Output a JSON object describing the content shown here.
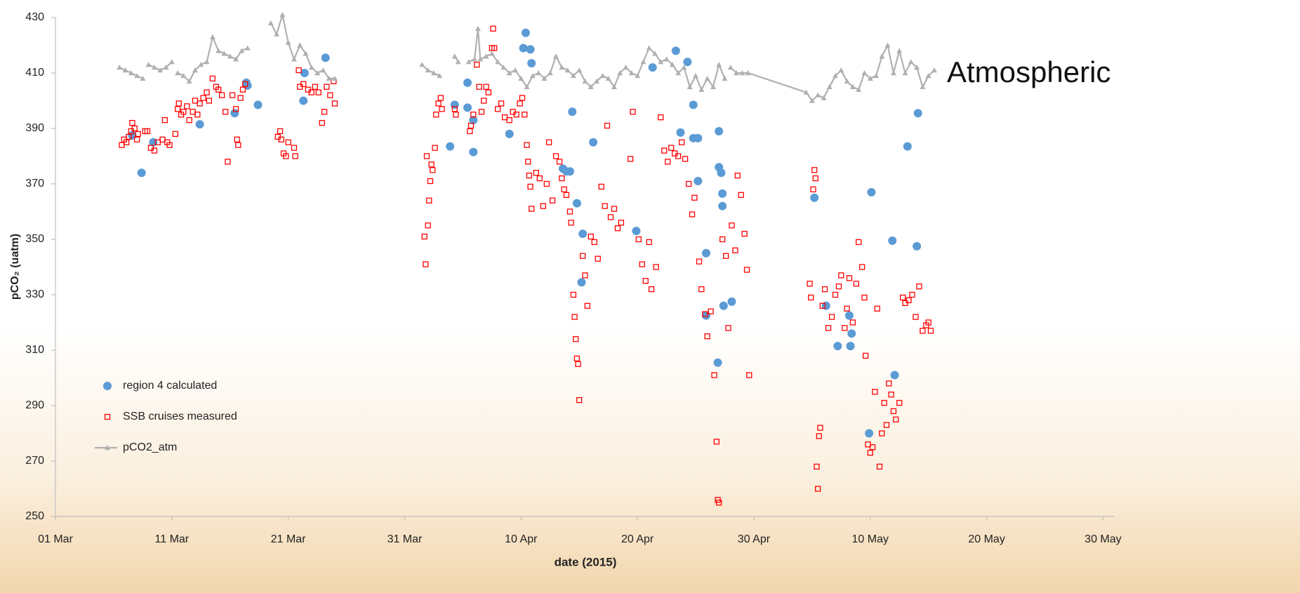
{
  "chart_data": {
    "type": "scatter",
    "annotation": "Atmospheric",
    "x_label": "date (2015)",
    "y_label": "pCO₂ (uatm)",
    "legend": "lower left",
    "xlim": [
      60,
      151
    ],
    "ylim": [
      250,
      430
    ],
    "xticks": [
      {
        "value": 60,
        "label": "01 Mar"
      },
      {
        "value": 70,
        "label": "11 Mar"
      },
      {
        "value": 80,
        "label": "21 Mar"
      },
      {
        "value": 90,
        "label": "31 Mar"
      },
      {
        "value": 100,
        "label": "10 Apr"
      },
      {
        "value": 110,
        "label": "20 Apr"
      },
      {
        "value": 120,
        "label": "30 Apr"
      },
      {
        "value": 130,
        "label": "10 May"
      },
      {
        "value": 140,
        "label": "20 May"
      },
      {
        "value": 150,
        "label": "30 May"
      }
    ],
    "yticks": [
      250,
      270,
      290,
      310,
      330,
      350,
      370,
      390,
      410,
      430
    ],
    "series": [
      {
        "name": "region 4 calculated",
        "color": "#5b9bd5",
        "marker": "circle",
        "x": [
          66.6,
          67.4,
          68.4,
          72.4,
          75.4,
          76.4,
          76.5,
          77.4,
          81.3,
          81.4,
          83.2,
          93.9,
          94.3,
          95.4,
          95.4,
          95.9,
          95.9,
          99,
          100.4,
          100.2,
          100.8,
          100.9,
          103.6,
          103.9,
          104.2,
          104.4,
          104.8,
          105.2,
          105.3,
          106.2,
          109.9,
          111.3,
          113.3,
          113.7,
          114.3,
          114.8,
          114.8,
          115.2,
          115.2,
          115.9,
          115.9,
          116.9,
          117,
          117,
          117.2,
          117.3,
          117.3,
          117.4,
          118.1,
          125.2,
          126.2,
          127.2,
          128.2,
          128.3,
          128.4,
          129.9,
          130.1,
          131.9,
          132.1,
          133.2,
          134,
          134.1
        ],
        "values": [
          387.5,
          374,
          385,
          391.5,
          395.5,
          406.5,
          405.5,
          398.5,
          400,
          410,
          415.5,
          383.5,
          398.5,
          397.5,
          406.5,
          393,
          381.5,
          388,
          424.5,
          419,
          418.5,
          413.5,
          375.5,
          374.5,
          374.5,
          396,
          363,
          334.5,
          352,
          385,
          353,
          412,
          418,
          388.5,
          414,
          398.5,
          386.5,
          386.5,
          371,
          345,
          322.5,
          305.5,
          389,
          376,
          374,
          366.5,
          362,
          326,
          327.5,
          365,
          326,
          311.5,
          322.5,
          311.5,
          316,
          280,
          367,
          349.5,
          301,
          383.5,
          347.5,
          395.5
        ]
      },
      {
        "name": "SSB cruises measured",
        "color": "#ff0000",
        "marker": "square",
        "x": [
          65.7,
          65.9,
          66.1,
          66.3,
          66.5,
          66.6,
          66.8,
          67.0,
          67.1,
          67.7,
          67.9,
          68.2,
          68.5,
          68.8,
          69.2,
          69.4,
          69.6,
          69.8,
          70.3,
          70.5,
          70.6,
          70.8,
          71.0,
          71.3,
          71.5,
          71.8,
          72.0,
          72.2,
          72.4,
          72.7,
          73.0,
          73.2,
          73.5,
          73.8,
          74.0,
          74.3,
          74.6,
          74.8,
          75.2,
          75.5,
          75.6,
          75.7,
          75.9,
          76.1,
          76.3,
          79.1,
          79.3,
          79.4,
          79.6,
          79.8,
          80.0,
          80.5,
          80.6,
          80.9,
          81.0,
          81.3,
          81.7,
          82.0,
          82.3,
          82.6,
          82.9,
          83.1,
          83.3,
          83.6,
          83.9,
          84.0,
          91.7,
          91.8,
          91.9,
          92.0,
          92.1,
          92.2,
          92.3,
          92.4,
          92.6,
          92.7,
          92.9,
          93.1,
          93.2,
          94.3,
          94.4,
          95.6,
          95.7,
          95.9,
          96.2,
          96.4,
          96.6,
          96.8,
          97.0,
          97.2,
          97.5,
          97.6,
          97.7,
          98.0,
          98.3,
          98.6,
          99.0,
          99.3,
          99.6,
          99.9,
          100.1,
          100.3,
          100.5,
          100.6,
          100.7,
          100.8,
          100.9,
          101.3,
          101.6,
          101.9,
          102.2,
          102.4,
          102.7,
          103.0,
          103.3,
          103.5,
          103.7,
          103.9,
          104.2,
          104.3,
          104.5,
          104.6,
          104.7,
          104.8,
          104.9,
          105.0,
          105.3,
          105.5,
          105.7,
          106.0,
          106.3,
          106.6,
          106.9,
          107.2,
          107.4,
          107.7,
          108.0,
          108.3,
          108.6,
          109.4,
          109.6,
          110.1,
          110.4,
          110.7,
          111.0,
          111.2,
          111.6,
          112.0,
          112.3,
          112.6,
          112.9,
          113.2,
          113.5,
          113.8,
          114.1,
          114.4,
          114.7,
          114.9,
          115.3,
          115.5,
          115.8,
          116.0,
          116.3,
          116.6,
          116.8,
          116.9,
          117.0,
          117.3,
          117.6,
          117.8,
          118.1,
          118.4,
          118.6,
          118.9,
          119.2,
          119.4,
          119.6,
          124.8,
          124.9,
          125.1,
          125.2,
          125.3,
          125.4,
          125.5,
          125.6,
          125.7,
          125.9,
          126.1,
          126.4,
          126.7,
          127.0,
          127.3,
          127.5,
          127.8,
          128.0,
          128.2,
          128.5,
          128.8,
          129.0,
          129.3,
          129.5,
          129.6,
          129.8,
          130.0,
          130.2,
          130.4,
          130.6,
          130.8,
          131.0,
          131.2,
          131.4,
          131.6,
          131.8,
          132.0,
          132.2,
          132.5,
          132.8,
          133.0,
          133.3,
          133.6,
          133.9,
          134.2,
          134.5,
          134.8,
          135.0,
          135.2
        ],
        "values": [
          384,
          386,
          385,
          387,
          389,
          392,
          390,
          386,
          388,
          389,
          389,
          383,
          382,
          385,
          386,
          393,
          385,
          384,
          388,
          397,
          399,
          395,
          396,
          398,
          393,
          396,
          400,
          395,
          399,
          401,
          403,
          400,
          408,
          405,
          404,
          402,
          396,
          378,
          402,
          397,
          386,
          384,
          401,
          404,
          406,
          387,
          389,
          386,
          381,
          380,
          385,
          383,
          380,
          411,
          405,
          406,
          404,
          403,
          405,
          403,
          392,
          396,
          405,
          402,
          407,
          399,
          351,
          341,
          380,
          355,
          364,
          371,
          377,
          375,
          383,
          395,
          399,
          401,
          397,
          397,
          395,
          389,
          391,
          395,
          413,
          405,
          396,
          400,
          405,
          403,
          419,
          426,
          419,
          397,
          399,
          394,
          393,
          396,
          395,
          399,
          401,
          395,
          384,
          378,
          373,
          369,
          361,
          374,
          372,
          362,
          370,
          385,
          364,
          380,
          378,
          372,
          368,
          366,
          360,
          356,
          330,
          322,
          314,
          307,
          305,
          292,
          344,
          337,
          326,
          351,
          349,
          343,
          369,
          362,
          391,
          358,
          361,
          354,
          356,
          379,
          396,
          350,
          341,
          335,
          349,
          332,
          340,
          394,
          382,
          378,
          383,
          381,
          380,
          385,
          379,
          370,
          359,
          365,
          342,
          332,
          323,
          315,
          324,
          301,
          277,
          256,
          255,
          350,
          344,
          318,
          355,
          346,
          373,
          366,
          352,
          339,
          301,
          334,
          329,
          368,
          375,
          372,
          268,
          260,
          279,
          282,
          326,
          332,
          318,
          322,
          330,
          333,
          337,
          318,
          325,
          336,
          320,
          334,
          349,
          340,
          329,
          308,
          276,
          273,
          275,
          295,
          325,
          268,
          280,
          291,
          283,
          298,
          294,
          288,
          285,
          291,
          329,
          327,
          328,
          330,
          322,
          333,
          317,
          319,
          320,
          317
        ]
      },
      {
        "name": "pCO2_atm",
        "color": "#b0b0b0",
        "marker": "line-triangle",
        "x": [
          65.5,
          66,
          66.5,
          67,
          67.5,
          null,
          68,
          68.5,
          69,
          69.5,
          70,
          null,
          70.5,
          71,
          71.5,
          72,
          72.5,
          73,
          73.5,
          74,
          74.5,
          75,
          75.5,
          76,
          76.5,
          null,
          78.5,
          79,
          79.5,
          80,
          80.5,
          81,
          81.5,
          82,
          82.5,
          83,
          83.5,
          84,
          null,
          91.5,
          92,
          92.5,
          93,
          null,
          94.3,
          94.6,
          null,
          95.5,
          96,
          96.3,
          96.5,
          97,
          97.5,
          98,
          98.5,
          99,
          99.5,
          100,
          100.5,
          101,
          101.5,
          102,
          102.5,
          103,
          103.5,
          104,
          104.5,
          105,
          105.5,
          106,
          106.5,
          107,
          107.5,
          108,
          108.5,
          109,
          109.5,
          110,
          110.5,
          111,
          111.5,
          112,
          112.5,
          113,
          113.5,
          114,
          114.5,
          115,
          115.5,
          116,
          116.5,
          117,
          117.5,
          null,
          118,
          118.5,
          119,
          119.5,
          124.5,
          125,
          125.5,
          126,
          126.5,
          127,
          127.5,
          128,
          128.5,
          129,
          129.5,
          130,
          130.5,
          131,
          131.5,
          132,
          132.5,
          133,
          133.5,
          134,
          134.5,
          135,
          135.5
        ],
        "values": [
          412,
          411,
          410,
          409,
          408,
          null,
          413,
          412,
          411,
          412,
          414,
          null,
          410,
          409,
          407,
          411,
          413,
          414,
          423,
          418,
          417,
          416,
          415,
          418,
          419,
          null,
          428,
          424,
          431,
          421,
          415,
          420,
          417,
          412,
          410,
          411,
          408,
          408,
          null,
          413,
          411,
          410,
          409,
          null,
          416,
          414,
          null,
          414,
          415,
          426,
          415,
          416,
          417,
          414,
          412,
          410,
          411,
          408,
          405,
          409,
          410,
          408,
          410,
          416,
          412,
          411,
          409,
          411,
          407,
          405,
          407,
          409,
          408,
          405,
          410,
          412,
          410,
          409,
          414,
          419,
          417,
          414,
          415,
          413,
          410,
          412,
          405,
          409,
          404,
          408,
          405,
          413,
          408,
          null,
          412,
          410,
          410,
          410,
          403,
          400,
          402,
          401,
          405,
          409,
          411,
          407,
          405,
          404,
          410,
          408,
          409,
          416,
          420,
          410,
          418,
          410,
          414,
          412,
          405,
          409,
          411
        ]
      }
    ]
  }
}
